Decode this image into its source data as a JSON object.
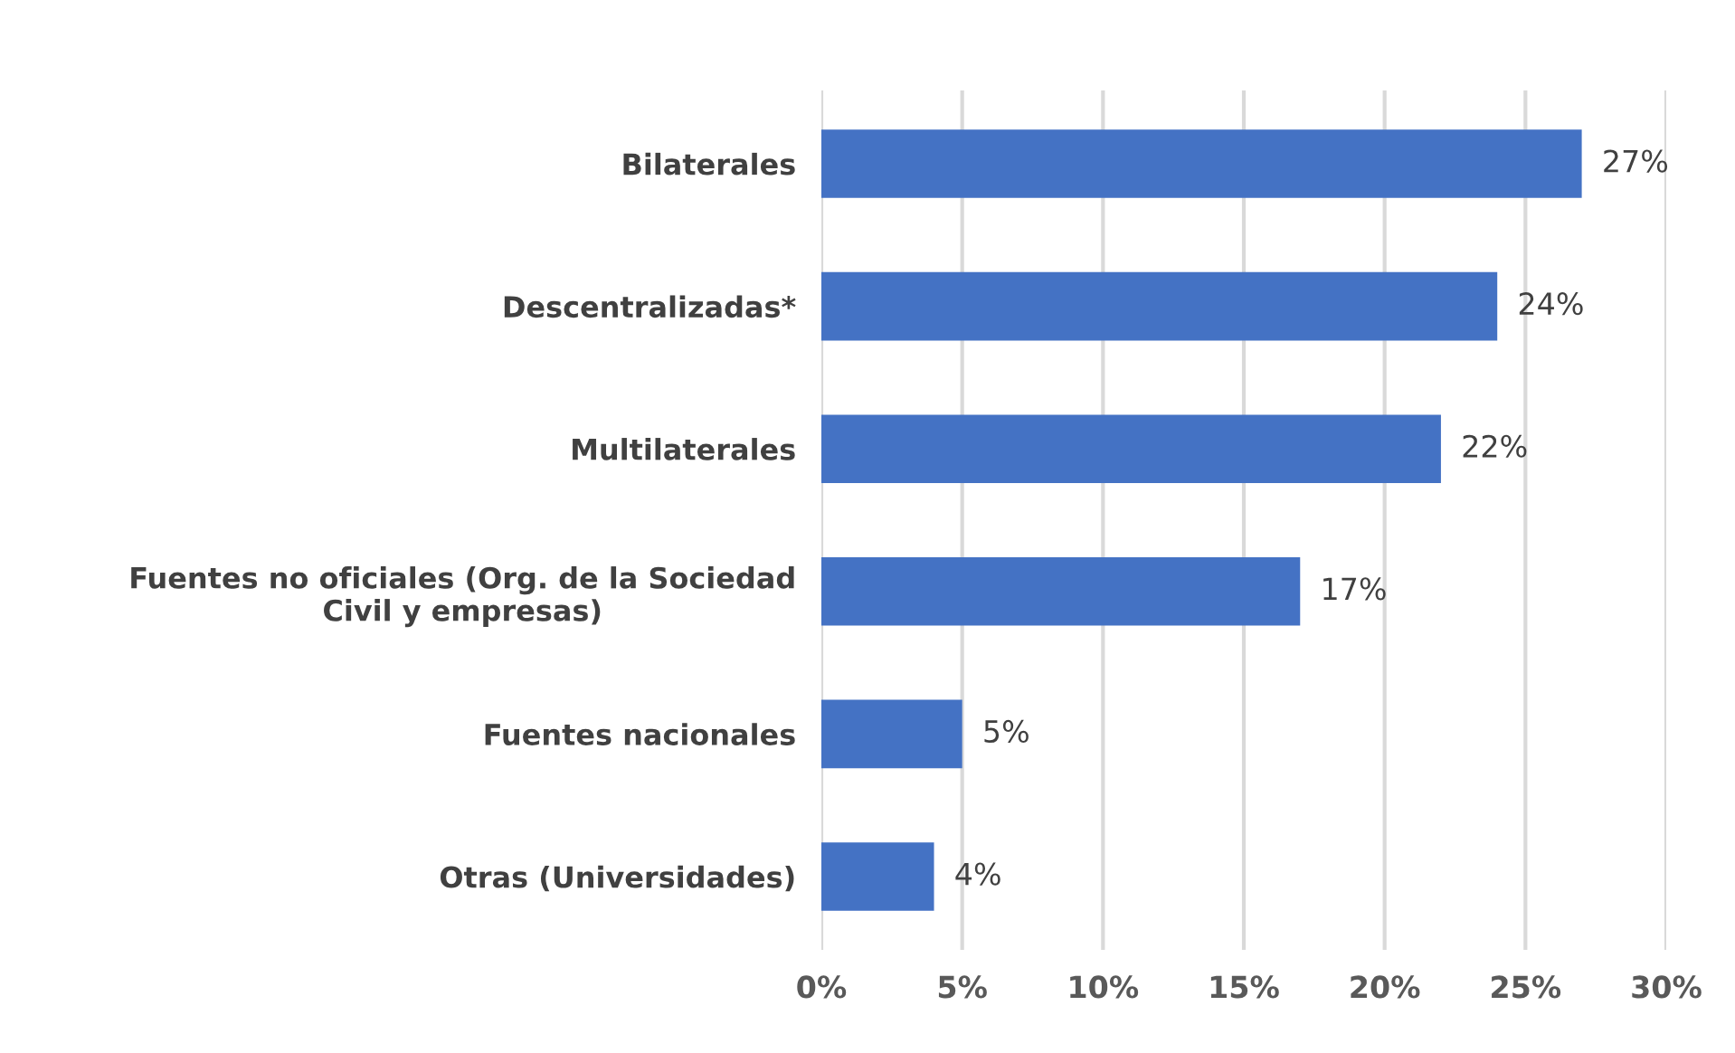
{
  "chart_data": {
    "type": "bar",
    "orientation": "horizontal",
    "categories": [
      "Bilaterales",
      "Descentralizadas*",
      "Multilaterales",
      "Fuentes no oficiales (Org. de la Sociedad\nCivil y empresas)",
      "Fuentes nacionales",
      "Otras (Universidades)"
    ],
    "values": [
      27,
      24,
      22,
      17,
      5,
      4
    ],
    "value_labels": [
      "27%",
      "24%",
      "22%",
      "17%",
      "5%",
      "4%"
    ],
    "color": "#4472c4",
    "xlim": [
      0,
      30
    ],
    "xticks": [
      {
        "value": 0,
        "label": "0%"
      },
      {
        "value": 5,
        "label": "5%"
      },
      {
        "value": 10,
        "label": "10%"
      },
      {
        "value": 15,
        "label": "15%"
      },
      {
        "value": 20,
        "label": "20%"
      },
      {
        "value": 25,
        "label": "25%"
      },
      {
        "value": 30,
        "label": "30%"
      }
    ],
    "grid": "x",
    "legend": false
  }
}
